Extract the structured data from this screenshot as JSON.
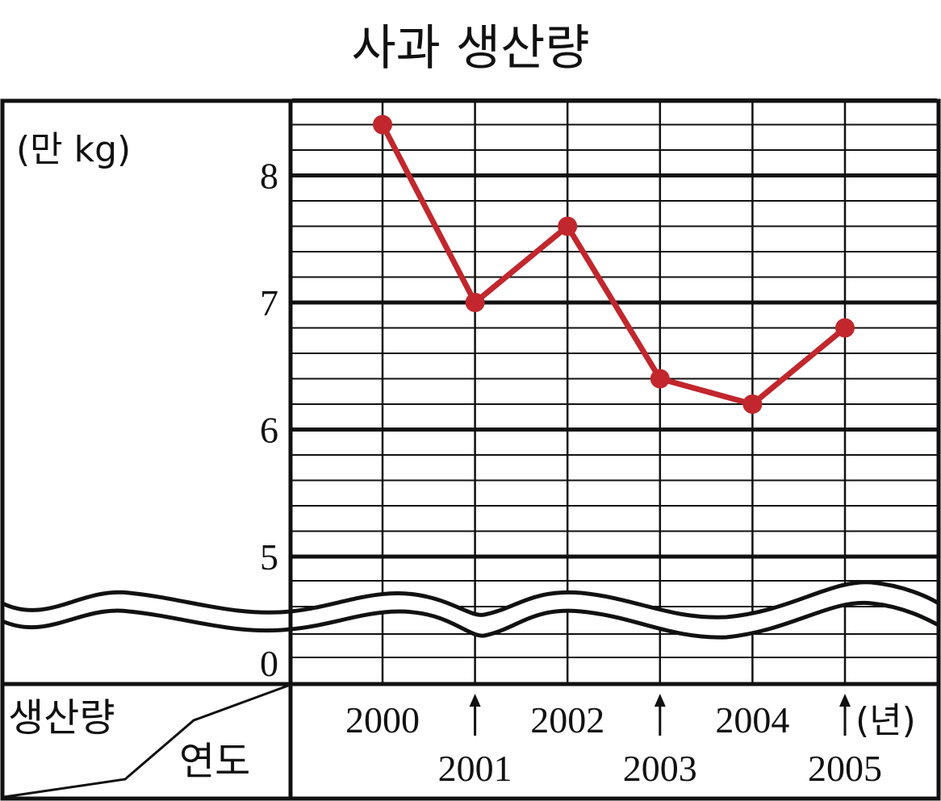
{
  "chart_data": {
    "type": "line",
    "title": "사과 생산량",
    "unit_label": "(만 kg)",
    "corner_row_label": "생산량",
    "corner_col_label": "연도",
    "x_unit": "(년)",
    "categories": [
      "2000",
      "2001",
      "2002",
      "2003",
      "2004",
      "2005"
    ],
    "series": [
      {
        "values": [
          8.4,
          7.0,
          7.6,
          6.4,
          6.2,
          6.8
        ]
      }
    ],
    "y_ticks": [
      "0",
      "5",
      "6",
      "7",
      "8"
    ],
    "ylim": [
      5,
      8.6
    ],
    "axis_break": true,
    "grid": true,
    "line_color": "#c1272d"
  }
}
